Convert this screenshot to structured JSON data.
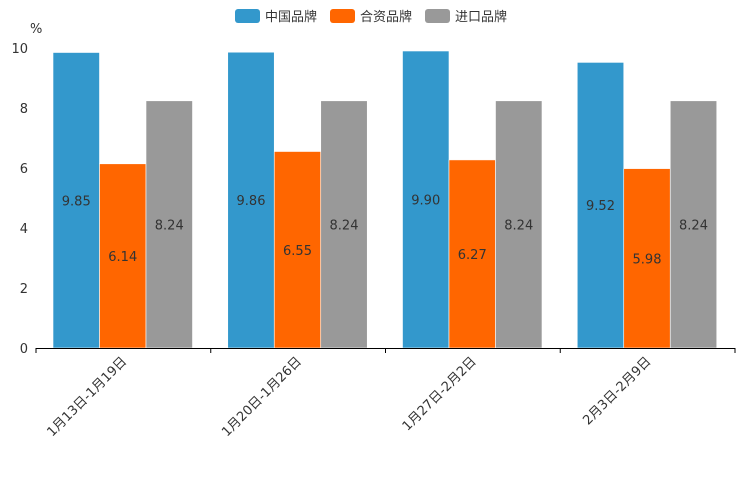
{
  "chart_data": {
    "type": "bar",
    "title": "",
    "ylabel": "%",
    "xlabel": "",
    "ylim": [
      0,
      10
    ],
    "yticks": [
      "0",
      "2",
      "4",
      "6",
      "8",
      "10"
    ],
    "categories": [
      "1月13日-1月19日",
      "1月20日-1月26日",
      "1月27日-2月2日",
      "2月3日-2月9日"
    ],
    "series": [
      {
        "name": "中国品牌",
        "color": "#3398cc",
        "values": [
          9.85,
          9.86,
          9.9,
          9.52
        ],
        "labels": [
          "9.85",
          "9.86",
          "9.90",
          "9.52"
        ]
      },
      {
        "name": "合资品牌",
        "color": "#ff6600",
        "values": [
          6.14,
          6.55,
          6.27,
          5.98
        ],
        "labels": [
          "6.14",
          "6.55",
          "6.27",
          "5.98"
        ]
      },
      {
        "name": "进口品牌",
        "color": "#999999",
        "values": [
          8.24,
          8.24,
          8.24,
          8.24
        ],
        "labels": [
          "8.24",
          "8.24",
          "8.24",
          "8.24"
        ]
      }
    ],
    "legend_position": "top-center"
  }
}
